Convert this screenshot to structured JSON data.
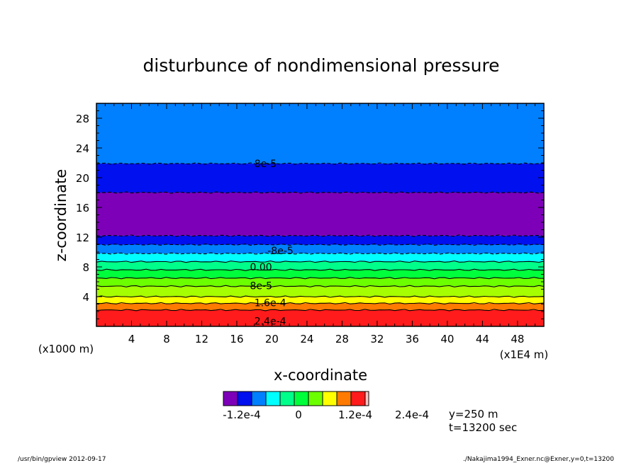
{
  "chart_data": {
    "type": "heatmap",
    "title": "disturbunce of nondimensional pressure",
    "xlabel": "x-coordinate",
    "ylabel": "z-coordinate",
    "x_unit_left": "(x1000 m)",
    "x_unit_right": "(x1E4 m)",
    "xlim": [
      0,
      51
    ],
    "ylim": [
      0,
      30
    ],
    "x_ticks": [
      4,
      8,
      12,
      16,
      20,
      24,
      28,
      32,
      36,
      40,
      44,
      48
    ],
    "y_ticks": [
      4,
      8,
      12,
      16,
      20,
      24,
      28
    ],
    "bands": [
      {
        "z_from": 0.0,
        "z_to": 1.0,
        "color": "#ff1b1b"
      },
      {
        "z_from": 1.0,
        "z_to": 2.2,
        "color": "#ff1b1b"
      },
      {
        "z_from": 2.2,
        "z_to": 3.1,
        "color": "#ff7a00"
      },
      {
        "z_from": 3.1,
        "z_to": 4.0,
        "color": "#ffff00"
      },
      {
        "z_from": 4.0,
        "z_to": 5.4,
        "color": "#a6ff00"
      },
      {
        "z_from": 5.4,
        "z_to": 6.5,
        "color": "#6cff00"
      },
      {
        "z_from": 6.5,
        "z_to": 7.6,
        "color": "#00ff3b"
      },
      {
        "z_from": 7.6,
        "z_to": 8.7,
        "color": "#00ff8a"
      },
      {
        "z_from": 8.7,
        "z_to": 9.8,
        "color": "#00ffff"
      },
      {
        "z_from": 9.8,
        "z_to": 11.0,
        "color": "#0080ff"
      },
      {
        "z_from": 11.0,
        "z_to": 12.2,
        "color": "#0010ee"
      },
      {
        "z_from": 12.2,
        "z_to": 18.0,
        "color": "#7d00b8"
      },
      {
        "z_from": 18.0,
        "z_to": 21.9,
        "color": "#0010ee"
      },
      {
        "z_from": 21.9,
        "z_to": 30.0,
        "color": "#0080ff"
      }
    ],
    "contour_lines": [
      {
        "z": 2.2,
        "dashed": false
      },
      {
        "z": 3.1,
        "dashed": false
      },
      {
        "z": 4.0,
        "dashed": false
      },
      {
        "z": 5.4,
        "dashed": false
      },
      {
        "z": 6.5,
        "dashed": false
      },
      {
        "z": 7.6,
        "dashed": false
      },
      {
        "z": 8.7,
        "dashed": false
      },
      {
        "z": 9.8,
        "dashed": true
      },
      {
        "z": 11.0,
        "dashed": true
      },
      {
        "z": 12.2,
        "dashed": true
      },
      {
        "z": 18.0,
        "dashed": true
      },
      {
        "z": 21.9,
        "dashed": true
      }
    ],
    "contour_labels": [
      {
        "text": "8e-5",
        "x": 18.0,
        "z": 21.9
      },
      {
        "text": "-8e-5",
        "x": 19.5,
        "z": 10.2
      },
      {
        "text": "0.00",
        "x": 17.5,
        "z": 8.0
      },
      {
        "text": "8e-5",
        "x": 17.5,
        "z": 5.5
      },
      {
        "text": "1.6e-4",
        "x": 18.0,
        "z": 3.2
      },
      {
        "text": "2.4e-4",
        "x": 18.0,
        "z": 0.7
      }
    ],
    "colorbar": {
      "colors": [
        "#7d00b8",
        "#0010ee",
        "#0080ff",
        "#00ffff",
        "#00ff8a",
        "#00ff3b",
        "#6cff00",
        "#ffff00",
        "#ff7a00",
        "#ff1b1b",
        "#ffc6c6"
      ],
      "tick_labels": [
        "-1.2e-4",
        "0",
        "1.2e-4",
        "2.4e-4"
      ]
    },
    "info": {
      "y_text": "y=250  m",
      "t_text": "t=13200 sec"
    }
  },
  "footer": {
    "left": "/usr/bin/gpview   2012-09-17",
    "right": "./Nakajima1994_Exner.nc@Exner,y=0,t=13200"
  }
}
